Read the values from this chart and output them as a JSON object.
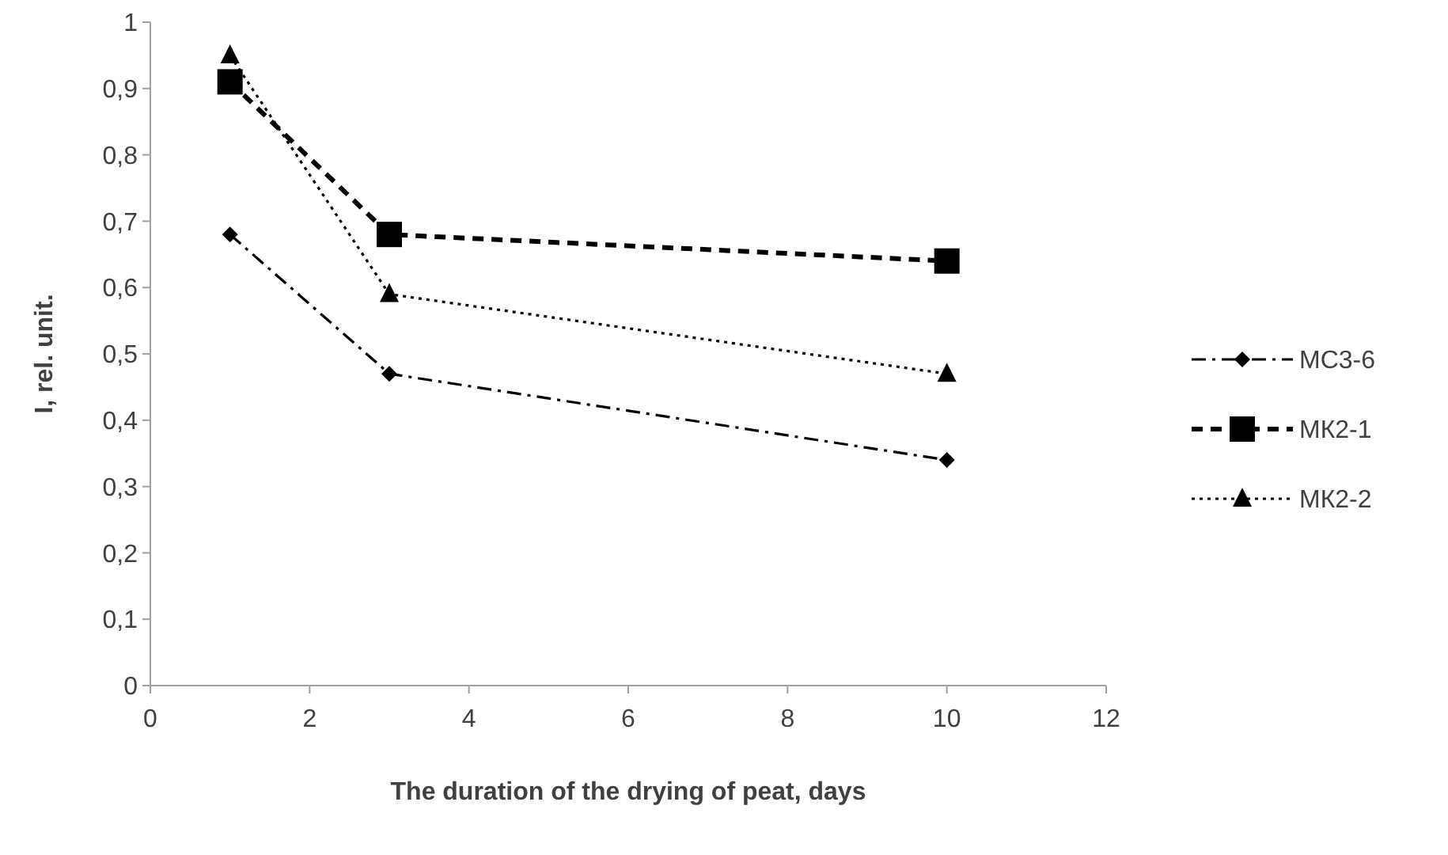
{
  "chart_data": {
    "type": "line",
    "xlabel": "The duration of the drying of peat, days",
    "ylabel": "I,  rel. unit.",
    "x": [
      1,
      3,
      10
    ],
    "series": [
      {
        "name": "МС3-6",
        "color": "#000000",
        "values": [
          0.68,
          0.47,
          0.34
        ],
        "marker": "diamond",
        "line_style": "dashdot"
      },
      {
        "name": "МК2-1",
        "color": "#000000",
        "values": [
          0.91,
          0.68,
          0.64
        ],
        "marker": "square",
        "line_style": "dashed"
      },
      {
        "name": "МК2-2",
        "color": "#000000",
        "values": [
          0.95,
          0.59,
          0.47
        ],
        "marker": "triangle",
        "line_style": "dotted"
      }
    ],
    "xlim": [
      0,
      12
    ],
    "xticks": [
      0,
      2,
      4,
      6,
      8,
      10,
      12
    ],
    "ylim": [
      0,
      1
    ],
    "yticks": [
      0,
      {
        "value": 0.1,
        "label": "0,1"
      },
      {
        "value": 0.2,
        "label": "0,2"
      },
      {
        "value": 0.3,
        "label": "0,3"
      },
      {
        "value": 0.4,
        "label": "0,4"
      },
      {
        "value": 0.5,
        "label": "0,5"
      },
      {
        "value": 0.6,
        "label": "0,6"
      },
      {
        "value": 0.7,
        "label": "0,7"
      },
      {
        "value": 0.8,
        "label": "0,8"
      },
      {
        "value": 0.9,
        "label": "0,9"
      },
      1
    ],
    "grid": false,
    "legend": "right"
  }
}
